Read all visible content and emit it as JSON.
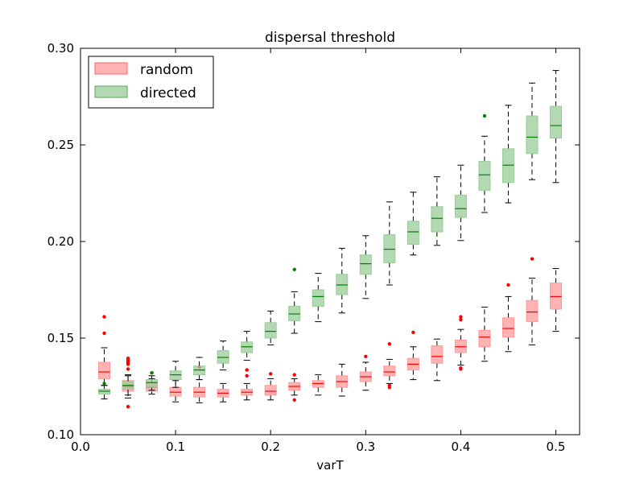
{
  "chart_data": {
    "type": "box",
    "title": "dispersal threshold",
    "xlabel": "varT",
    "ylabel": "",
    "xlim": [
      0.0,
      0.525
    ],
    "ylim": [
      0.1,
      0.3
    ],
    "xticks": [
      "0.0",
      "0.1",
      "0.2",
      "0.3",
      "0.4",
      "0.5"
    ],
    "yticks": [
      "0.10",
      "0.15",
      "0.20",
      "0.25",
      "0.30"
    ],
    "legend_position": "top-left",
    "grid": false,
    "series": [
      {
        "name": "random",
        "color": "#ff9999",
        "median_color": "#ff0000",
        "boxes": [
          {
            "x": 0.025,
            "whislo": 0.1255,
            "q1": 0.129,
            "median": 0.1325,
            "q3": 0.1375,
            "whishi": 0.145,
            "fliers": [
              0.1525,
              0.161
            ]
          },
          {
            "x": 0.05,
            "whislo": 0.119,
            "q1": 0.1225,
            "median": 0.125,
            "q3": 0.128,
            "whishi": 0.131,
            "fliers": [
              0.1145,
              0.134,
              0.1365,
              0.1375,
              0.138,
              0.1385,
              0.1395
            ]
          },
          {
            "x": 0.075,
            "whislo": 0.121,
            "q1": 0.1225,
            "median": 0.1245,
            "q3": 0.1265,
            "whishi": 0.129,
            "fliers": []
          },
          {
            "x": 0.1,
            "whislo": 0.117,
            "q1": 0.12,
            "median": 0.122,
            "q3": 0.1245,
            "whishi": 0.128,
            "fliers": []
          },
          {
            "x": 0.125,
            "whislo": 0.1165,
            "q1": 0.1195,
            "median": 0.122,
            "q3": 0.1245,
            "whishi": 0.1285,
            "fliers": [
              0.135
            ]
          },
          {
            "x": 0.15,
            "whislo": 0.117,
            "q1": 0.1195,
            "median": 0.1215,
            "q3": 0.1235,
            "whishi": 0.1265,
            "fliers": []
          },
          {
            "x": 0.175,
            "whislo": 0.118,
            "q1": 0.1205,
            "median": 0.122,
            "q3": 0.1235,
            "whishi": 0.1265,
            "fliers": [
              0.1305,
              0.1335
            ]
          },
          {
            "x": 0.2,
            "whislo": 0.118,
            "q1": 0.1205,
            "median": 0.1225,
            "q3": 0.1255,
            "whishi": 0.129,
            "fliers": [
              0.1315
            ]
          },
          {
            "x": 0.225,
            "whislo": 0.1205,
            "q1": 0.123,
            "median": 0.125,
            "q3": 0.127,
            "whishi": 0.129,
            "fliers": [
              0.118,
              0.131
            ]
          },
          {
            "x": 0.25,
            "whislo": 0.1205,
            "q1": 0.1245,
            "median": 0.1265,
            "q3": 0.128,
            "whishi": 0.131,
            "fliers": []
          },
          {
            "x": 0.275,
            "whislo": 0.12,
            "q1": 0.1245,
            "median": 0.1275,
            "q3": 0.1305,
            "whishi": 0.1365,
            "fliers": []
          },
          {
            "x": 0.3,
            "whislo": 0.123,
            "q1": 0.1275,
            "median": 0.13,
            "q3": 0.1325,
            "whishi": 0.1375,
            "fliers": [
              0.1405
            ]
          },
          {
            "x": 0.325,
            "whislo": 0.1265,
            "q1": 0.1305,
            "median": 0.1325,
            "q3": 0.1355,
            "whishi": 0.139,
            "fliers": [
              0.1245,
              0.1255,
              0.147
            ]
          },
          {
            "x": 0.35,
            "whislo": 0.1285,
            "q1": 0.1335,
            "median": 0.1365,
            "q3": 0.1395,
            "whishi": 0.1455,
            "fliers": [
              0.153
            ]
          },
          {
            "x": 0.375,
            "whislo": 0.128,
            "q1": 0.137,
            "median": 0.1405,
            "q3": 0.146,
            "whishi": 0.1495,
            "fliers": []
          },
          {
            "x": 0.4,
            "whislo": 0.136,
            "q1": 0.1425,
            "median": 0.1455,
            "q3": 0.149,
            "whishi": 0.1545,
            "fliers": [
              0.134,
              0.1345,
              0.1595,
              0.161
            ]
          },
          {
            "x": 0.425,
            "whislo": 0.138,
            "q1": 0.1455,
            "median": 0.1505,
            "q3": 0.154,
            "whishi": 0.166,
            "fliers": []
          },
          {
            "x": 0.45,
            "whislo": 0.143,
            "q1": 0.1505,
            "median": 0.155,
            "q3": 0.1605,
            "whishi": 0.1715,
            "fliers": [
              0.1775
            ]
          },
          {
            "x": 0.475,
            "whislo": 0.1465,
            "q1": 0.1585,
            "median": 0.1635,
            "q3": 0.1695,
            "whishi": 0.181,
            "fliers": [
              0.191
            ]
          },
          {
            "x": 0.5,
            "whislo": 0.1535,
            "q1": 0.165,
            "median": 0.1715,
            "q3": 0.1785,
            "whishi": 0.186,
            "fliers": []
          }
        ]
      },
      {
        "name": "directed",
        "color": "#99cc99",
        "median_color": "#008000",
        "boxes": [
          {
            "x": 0.025,
            "whislo": 0.1185,
            "q1": 0.121,
            "median": 0.1225,
            "q3": 0.1235,
            "whishi": 0.1255,
            "fliers": [
              0.1265
            ]
          },
          {
            "x": 0.05,
            "whislo": 0.1205,
            "q1": 0.1235,
            "median": 0.1255,
            "q3": 0.1275,
            "whishi": 0.1305,
            "fliers": []
          },
          {
            "x": 0.075,
            "whislo": 0.123,
            "q1": 0.1245,
            "median": 0.127,
            "q3": 0.1285,
            "whishi": 0.1305,
            "fliers": [
              0.132
            ]
          },
          {
            "x": 0.1,
            "whislo": 0.1245,
            "q1": 0.1285,
            "median": 0.131,
            "q3": 0.133,
            "whishi": 0.138,
            "fliers": []
          },
          {
            "x": 0.125,
            "whislo": 0.1285,
            "q1": 0.131,
            "median": 0.1335,
            "q3": 0.1355,
            "whishi": 0.14,
            "fliers": []
          },
          {
            "x": 0.15,
            "whislo": 0.1335,
            "q1": 0.137,
            "median": 0.14,
            "q3": 0.1435,
            "whishi": 0.1485,
            "fliers": []
          },
          {
            "x": 0.175,
            "whislo": 0.1385,
            "q1": 0.1425,
            "median": 0.1455,
            "q3": 0.148,
            "whishi": 0.1535,
            "fliers": []
          },
          {
            "x": 0.2,
            "whislo": 0.1465,
            "q1": 0.15,
            "median": 0.1535,
            "q3": 0.158,
            "whishi": 0.164,
            "fliers": []
          },
          {
            "x": 0.225,
            "whislo": 0.1525,
            "q1": 0.159,
            "median": 0.1625,
            "q3": 0.1665,
            "whishi": 0.174,
            "fliers": [
              0.1855
            ]
          },
          {
            "x": 0.25,
            "whislo": 0.1585,
            "q1": 0.1665,
            "median": 0.1715,
            "q3": 0.175,
            "whishi": 0.1835,
            "fliers": []
          },
          {
            "x": 0.275,
            "whislo": 0.163,
            "q1": 0.1725,
            "median": 0.1775,
            "q3": 0.183,
            "whishi": 0.1965,
            "fliers": []
          },
          {
            "x": 0.3,
            "whislo": 0.1705,
            "q1": 0.183,
            "median": 0.1885,
            "q3": 0.193,
            "whishi": 0.203,
            "fliers": []
          },
          {
            "x": 0.325,
            "whislo": 0.1775,
            "q1": 0.189,
            "median": 0.196,
            "q3": 0.2035,
            "whishi": 0.2205,
            "fliers": []
          },
          {
            "x": 0.35,
            "whislo": 0.193,
            "q1": 0.1985,
            "median": 0.205,
            "q3": 0.2105,
            "whishi": 0.2255,
            "fliers": []
          },
          {
            "x": 0.375,
            "whislo": 0.198,
            "q1": 0.205,
            "median": 0.212,
            "q3": 0.218,
            "whishi": 0.2335,
            "fliers": []
          },
          {
            "x": 0.4,
            "whislo": 0.2005,
            "q1": 0.2125,
            "median": 0.217,
            "q3": 0.224,
            "whishi": 0.2395,
            "fliers": []
          },
          {
            "x": 0.425,
            "whislo": 0.215,
            "q1": 0.2265,
            "median": 0.2345,
            "q3": 0.2415,
            "whishi": 0.2545,
            "fliers": [
              0.265
            ]
          },
          {
            "x": 0.45,
            "whislo": 0.22,
            "q1": 0.2305,
            "median": 0.2395,
            "q3": 0.248,
            "whishi": 0.2705,
            "fliers": []
          },
          {
            "x": 0.475,
            "whislo": 0.232,
            "q1": 0.2455,
            "median": 0.254,
            "q3": 0.265,
            "whishi": 0.282,
            "fliers": []
          },
          {
            "x": 0.5,
            "whislo": 0.2305,
            "q1": 0.2535,
            "median": 0.26,
            "q3": 0.27,
            "whishi": 0.2885,
            "fliers": []
          }
        ]
      }
    ]
  }
}
